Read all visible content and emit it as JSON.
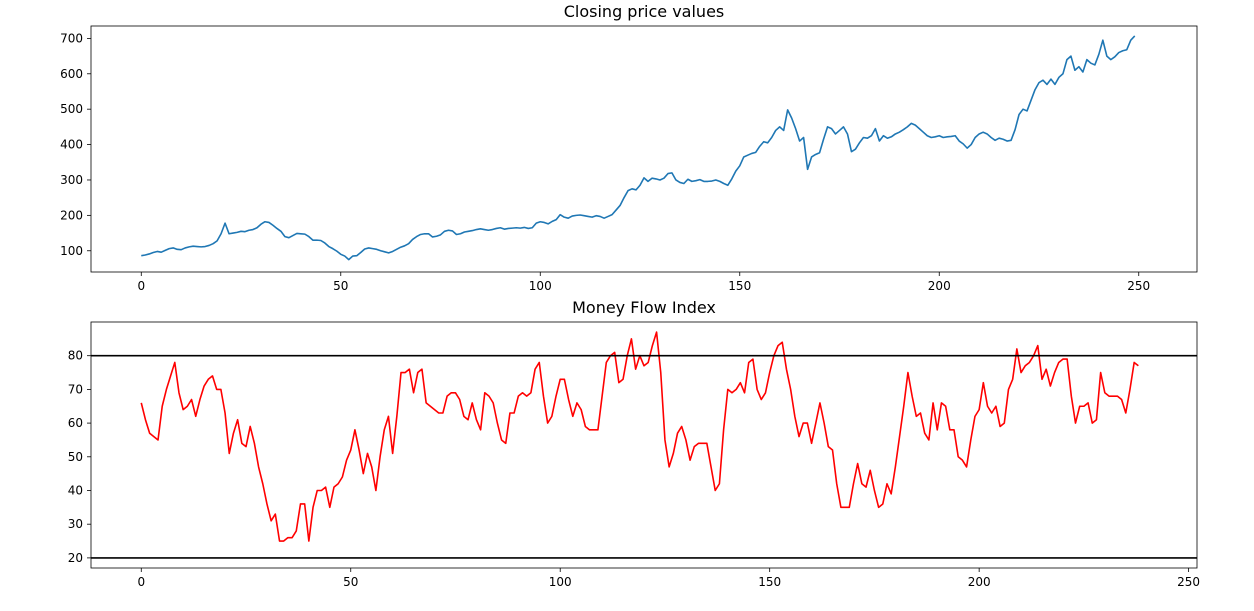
{
  "chart_data": [
    {
      "type": "line",
      "title": "Closing price values",
      "xlabel": "",
      "ylabel": "",
      "xlim": [
        -12.6,
        264.6
      ],
      "ylim": [
        40,
        735
      ],
      "xticks": [
        0,
        50,
        100,
        150,
        200,
        250
      ],
      "yticks": [
        100,
        200,
        300,
        400,
        500,
        600,
        700
      ],
      "grid": false,
      "colors": {
        "line": "#1f77b4"
      },
      "series": [
        {
          "x_start": 0,
          "values": [
            86,
            88,
            91,
            95,
            98,
            96,
            101,
            106,
            108,
            104,
            103,
            108,
            111,
            113,
            112,
            111,
            112,
            115,
            120,
            128,
            148,
            178,
            148,
            150,
            152,
            155,
            154,
            158,
            160,
            165,
            175,
            182,
            180,
            172,
            163,
            155,
            140,
            137,
            143,
            149,
            148,
            147,
            140,
            130,
            130,
            129,
            122,
            112,
            106,
            99,
            90,
            85,
            75,
            85,
            86,
            95,
            105,
            108,
            106,
            104,
            100,
            97,
            94,
            98,
            104,
            110,
            114,
            120,
            132,
            140,
            146,
            148,
            148,
            139,
            141,
            145,
            155,
            158,
            156,
            146,
            148,
            153,
            155,
            157,
            160,
            162,
            160,
            158,
            160,
            163,
            165,
            161,
            163,
            164,
            165,
            164,
            166,
            163,
            165,
            178,
            182,
            180,
            176,
            183,
            188,
            202,
            195,
            192,
            198,
            200,
            201,
            199,
            197,
            195,
            199,
            197,
            192,
            197,
            202,
            215,
            228,
            250,
            270,
            275,
            272,
            285,
            306,
            296,
            305,
            303,
            300,
            305,
            318,
            320,
            300,
            293,
            290,
            302,
            296,
            298,
            301,
            296,
            296,
            297,
            300,
            296,
            290,
            285,
            303,
            325,
            340,
            365,
            370,
            375,
            378,
            395,
            408,
            405,
            420,
            440,
            450,
            440,
            498,
            475,
            445,
            410,
            420,
            330,
            365,
            372,
            377,
            415,
            450,
            445,
            430,
            440,
            450,
            430,
            380,
            387,
            405,
            420,
            418,
            425,
            445,
            410,
            425,
            418,
            422,
            430,
            435,
            442,
            450,
            460,
            455,
            445,
            435,
            425,
            420,
            422,
            425,
            420,
            422,
            423,
            425,
            410,
            402,
            390,
            400,
            420,
            430,
            435,
            430,
            420,
            412,
            418,
            415,
            410,
            412,
            442,
            485,
            500,
            495,
            525,
            555,
            575,
            582,
            570,
            585,
            570,
            590,
            600,
            640,
            650,
            610,
            620,
            605,
            640,
            630,
            625,
            655,
            695,
            650,
            640,
            648,
            660,
            665,
            668,
            695,
            707
          ]
        }
      ]
    },
    {
      "type": "line",
      "title": "Money Flow Index",
      "xlabel": "",
      "ylabel": "",
      "xlim": [
        -12,
        252
      ],
      "ylim": [
        17,
        90
      ],
      "xticks": [
        0,
        50,
        100,
        150,
        200,
        250
      ],
      "yticks": [
        20,
        30,
        40,
        50,
        60,
        70,
        80
      ],
      "grid": false,
      "hlines": [
        80,
        20
      ],
      "colors": {
        "line": "#ff0000",
        "hline": "#000000"
      },
      "series": [
        {
          "x_start": 0,
          "values": [
            66,
            61,
            57,
            56,
            55,
            65,
            70,
            74,
            78,
            69,
            64,
            65,
            67,
            62,
            67,
            71,
            73,
            74,
            70,
            70,
            63,
            51,
            57,
            61,
            54,
            53,
            59,
            54,
            47,
            42,
            36,
            31,
            33,
            25,
            25,
            26,
            26,
            28,
            36,
            36,
            25,
            35,
            40,
            40,
            41,
            35,
            41,
            42,
            44,
            49,
            52,
            58,
            52,
            45,
            51,
            47,
            40,
            50,
            58,
            62,
            51,
            62,
            75,
            75,
            76,
            69,
            75,
            76,
            66,
            65,
            64,
            63,
            63,
            68,
            69,
            69,
            67,
            62,
            61,
            66,
            61,
            58,
            69,
            68,
            66,
            60,
            55,
            54,
            63,
            63,
            68,
            69,
            68,
            69,
            76,
            78,
            68,
            60,
            62,
            68,
            73,
            73,
            67,
            62,
            66,
            64,
            59,
            58,
            58,
            58,
            68,
            78,
            80,
            81,
            72,
            73,
            80,
            85,
            76,
            80,
            77,
            78,
            83,
            87,
            75,
            55,
            47,
            51,
            57,
            59,
            55,
            49,
            53,
            54,
            54,
            54,
            47,
            40,
            42,
            58,
            70,
            69,
            70,
            72,
            69,
            78,
            79,
            70,
            67,
            69,
            75,
            80,
            83,
            84,
            76,
            70,
            62,
            56,
            60,
            60,
            54,
            60,
            66,
            60,
            53,
            52,
            42,
            35,
            35,
            35,
            42,
            48,
            42,
            41,
            46,
            40,
            35,
            36,
            42,
            39,
            47,
            56,
            65,
            75,
            68,
            62,
            63,
            57,
            55,
            66,
            58,
            66,
            65,
            58,
            58,
            50,
            49,
            47,
            55,
            62,
            64,
            72,
            65,
            63,
            65,
            59,
            60,
            70,
            73,
            82,
            75,
            77,
            78,
            80,
            83,
            73,
            76,
            71,
            75,
            78,
            79,
            79,
            68,
            60,
            65,
            65,
            66,
            60,
            61,
            75,
            69,
            68,
            68,
            68,
            67,
            63,
            70,
            78,
            77
          ]
        }
      ]
    }
  ]
}
